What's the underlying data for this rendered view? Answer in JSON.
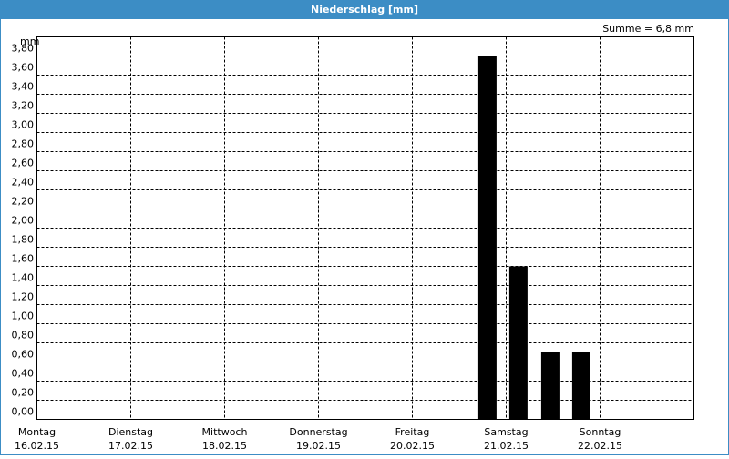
{
  "chart_data": {
    "type": "bar",
    "title": "Niederschlag [mm]",
    "y_unit": "mm",
    "annotation": "Summe = 6,8 mm",
    "x": [
      4.8,
      5.13,
      5.47,
      5.8
    ],
    "values": [
      3.8,
      1.6,
      0.7,
      0.7
    ],
    "color": "#000000",
    "xlim": [
      0,
      7
    ],
    "ylim": [
      0,
      4
    ],
    "xticks": [
      {
        "value": 0,
        "label": "Montag",
        "date": "16.02.15"
      },
      {
        "value": 1,
        "label": "Dienstag",
        "date": "17.02.15"
      },
      {
        "value": 2,
        "label": "Mittwoch",
        "date": "18.02.15"
      },
      {
        "value": 3,
        "label": "Donnerstag",
        "date": "19.02.15"
      },
      {
        "value": 4,
        "label": "Freitag",
        "date": "20.02.15"
      },
      {
        "value": 5,
        "label": "Samstag",
        "date": "21.02.15"
      },
      {
        "value": 6,
        "label": "Sonntag",
        "date": "22.02.15"
      }
    ],
    "yticks": [
      {
        "value": 0,
        "label": "0,00"
      },
      {
        "value": 0.2,
        "label": "0,20"
      },
      {
        "value": 0.4,
        "label": "0,40"
      },
      {
        "value": 0.6,
        "label": "0,60"
      },
      {
        "value": 0.8,
        "label": "0,80"
      },
      {
        "value": 1.0,
        "label": "1,00"
      },
      {
        "value": 1.2,
        "label": "1,20"
      },
      {
        "value": 1.4,
        "label": "1,40"
      },
      {
        "value": 1.6,
        "label": "1,60"
      },
      {
        "value": 1.8,
        "label": "1,80"
      },
      {
        "value": 2.0,
        "label": "2,00"
      },
      {
        "value": 2.2,
        "label": "2,20"
      },
      {
        "value": 2.4,
        "label": "2,40"
      },
      {
        "value": 2.6,
        "label": "2,60"
      },
      {
        "value": 2.8,
        "label": "2,80"
      },
      {
        "value": 3.0,
        "label": "3,00"
      },
      {
        "value": 3.2,
        "label": "3,20"
      },
      {
        "value": 3.4,
        "label": "3,40"
      },
      {
        "value": 3.6,
        "label": "3,60"
      },
      {
        "value": 3.8,
        "label": "3,80"
      }
    ],
    "grid": true
  }
}
